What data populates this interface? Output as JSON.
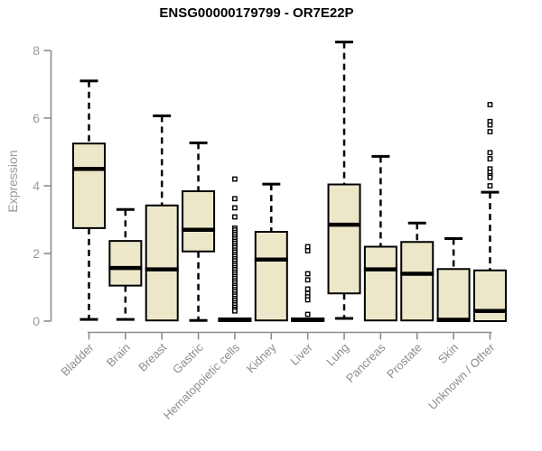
{
  "colors": {
    "box_fill": "#EDE7C9",
    "box_border": "#000000",
    "median": "#000000",
    "axis": "#8c8c8c",
    "tick_label": "#9a9a9a",
    "title": "#000000"
  },
  "chart_data": {
    "type": "boxplot",
    "title": "ENSG00000179799 - OR7E22P",
    "ylabel": "Expression",
    "xlabel": "",
    "ylim": [
      0,
      8.45
    ],
    "yticks": [
      0,
      2,
      4,
      6,
      8
    ],
    "grid": false,
    "categories": [
      "Bladder",
      "Brain",
      "Breast",
      "Gastric",
      "Hematopoietic cells",
      "Kidney",
      "Liver",
      "Lung",
      "Pancreas",
      "Prostate",
      "Skin",
      "Unknown / Other"
    ],
    "series": [
      {
        "name": "Bladder",
        "low": 0.05,
        "q1": 2.75,
        "median": 4.5,
        "q3": 5.25,
        "high": 7.1,
        "outliers": []
      },
      {
        "name": "Brain",
        "low": 0.05,
        "q1": 1.05,
        "median": 1.57,
        "q3": 2.37,
        "high": 3.3,
        "outliers": []
      },
      {
        "name": "Breast",
        "low": 0.02,
        "q1": 0.02,
        "median": 1.53,
        "q3": 3.42,
        "high": 6.07,
        "outliers": []
      },
      {
        "name": "Gastric",
        "low": 0.02,
        "q1": 2.06,
        "median": 2.7,
        "q3": 3.84,
        "high": 5.27,
        "outliers": []
      },
      {
        "name": "Hematopoietic cells",
        "low": 0.0,
        "q1": 0.0,
        "median": 0.04,
        "q3": 0.08,
        "high": 0.1,
        "outliers": [
          4.2,
          3.62,
          3.35,
          3.08,
          2.75,
          2.69,
          2.62,
          2.56,
          2.49,
          2.43,
          2.36,
          2.3,
          2.23,
          2.17,
          2.1,
          2.04,
          1.97,
          1.91,
          1.84,
          1.78,
          1.71,
          1.65,
          1.58,
          1.52,
          1.45,
          1.39,
          1.32,
          1.26,
          1.19,
          1.13,
          1.06,
          1.0,
          0.93,
          0.87,
          0.8,
          0.74,
          0.67,
          0.61,
          0.54,
          0.48,
          0.41,
          0.35,
          0.3
        ]
      },
      {
        "name": "Kidney",
        "low": 0.02,
        "q1": 0.02,
        "median": 1.82,
        "q3": 2.64,
        "high": 4.05,
        "outliers": []
      },
      {
        "name": "Liver",
        "low": 0.0,
        "q1": 0.0,
        "median": 0.04,
        "q3": 0.08,
        "high": 0.1,
        "outliers": [
          2.2,
          2.08,
          1.4,
          1.22,
          0.95,
          0.82,
          0.72,
          0.63,
          0.2
        ]
      },
      {
        "name": "Lung",
        "low": 0.08,
        "q1": 0.82,
        "median": 2.85,
        "q3": 4.04,
        "high": 8.25,
        "outliers": []
      },
      {
        "name": "Pancreas",
        "low": 0.02,
        "q1": 0.02,
        "median": 1.53,
        "q3": 2.2,
        "high": 4.87,
        "outliers": []
      },
      {
        "name": "Prostate",
        "low": 0.02,
        "q1": 0.02,
        "median": 1.4,
        "q3": 2.34,
        "high": 2.9,
        "outliers": []
      },
      {
        "name": "Skin",
        "low": 0.0,
        "q1": 0.0,
        "median": 0.04,
        "q3": 1.54,
        "high": 2.44,
        "outliers": []
      },
      {
        "name": "Unknown / Other",
        "low": 0.0,
        "q1": 0.0,
        "median": 0.3,
        "q3": 1.5,
        "high": 3.81,
        "outliers": [
          6.4,
          5.9,
          5.8,
          5.6,
          4.98,
          4.8,
          4.5,
          4.4,
          4.3,
          4.25,
          4.0
        ]
      }
    ]
  }
}
